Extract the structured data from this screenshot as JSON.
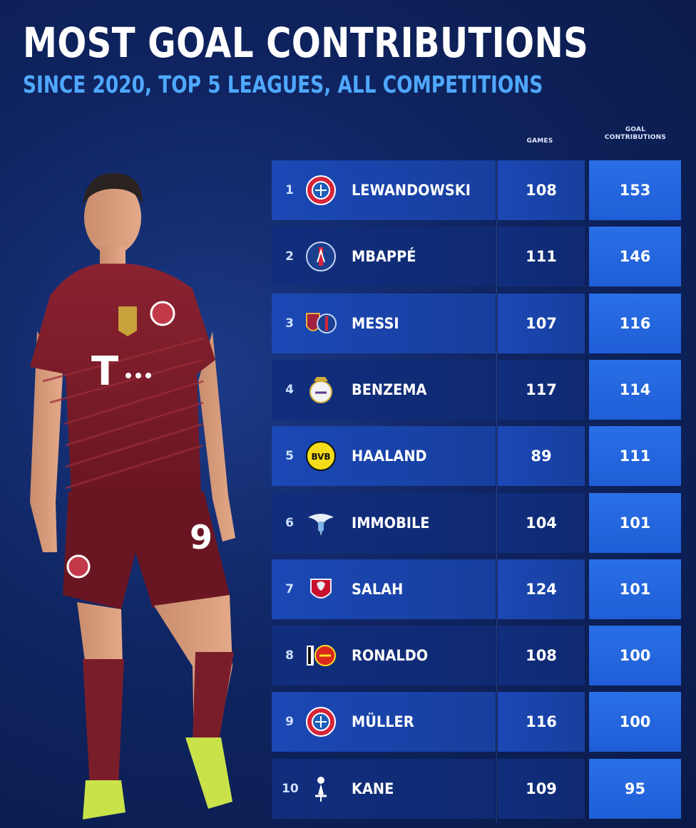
{
  "title": "MOST GOAL CONTRIBUTIONS",
  "subtitle": "SINCE 2020, TOP 5 LEAGUES, ALL COMPETITIONS",
  "columns": {
    "games": "GAMES",
    "gc_line1": "GOAL",
    "gc_line2": "CONTRIBUTIONS"
  },
  "colors": {
    "background": "#0f2461",
    "accent": "#4fa8ff",
    "highlight_column": "#2263dc",
    "kit": "#7a1d2a"
  },
  "chart_data": {
    "type": "table",
    "title": "MOST GOAL CONTRIBUTIONS",
    "subtitle": "SINCE 2020, TOP 5 LEAGUES, ALL COMPETITIONS",
    "columns": [
      "GAMES",
      "GOAL CONTRIBUTIONS"
    ],
    "rows": [
      {
        "rank": "1",
        "player": "LEWANDOWSKI",
        "games": "108",
        "gc": "153",
        "club_icon": "bayern-crest"
      },
      {
        "rank": "2",
        "player": "MBAPPÉ",
        "games": "111",
        "gc": "146",
        "club_icon": "psg-crest"
      },
      {
        "rank": "3",
        "player": "MESSI",
        "games": "107",
        "gc": "116",
        "club_icon": "barcelona-psg-crest"
      },
      {
        "rank": "4",
        "player": "BENZEMA",
        "games": "117",
        "gc": "114",
        "club_icon": "real-madrid-crest"
      },
      {
        "rank": "5",
        "player": "HAALAND",
        "games": "89",
        "gc": "111",
        "club_icon": "dortmund-crest"
      },
      {
        "rank": "6",
        "player": "IMMOBILE",
        "games": "104",
        "gc": "101",
        "club_icon": "lazio-crest"
      },
      {
        "rank": "7",
        "player": "SALAH",
        "games": "124",
        "gc": "101",
        "club_icon": "liverpool-crest"
      },
      {
        "rank": "8",
        "player": "RONALDO",
        "games": "108",
        "gc": "100",
        "club_icon": "juventus-united-crest"
      },
      {
        "rank": "9",
        "player": "MÜLLER",
        "games": "116",
        "gc": "100",
        "club_icon": "bayern-crest"
      },
      {
        "rank": "10",
        "player": "KANE",
        "games": "109",
        "gc": "95",
        "club_icon": "tottenham-crest"
      }
    ]
  }
}
